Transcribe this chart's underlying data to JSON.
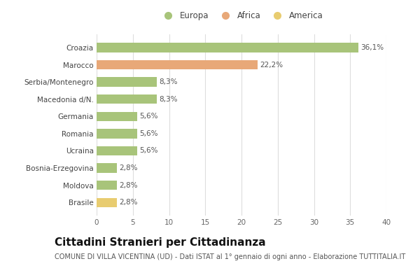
{
  "categories": [
    "Brasile",
    "Moldova",
    "Bosnia-Erzegovina",
    "Ucraina",
    "Romania",
    "Germania",
    "Macedonia d/N.",
    "Serbia/Montenegro",
    "Marocco",
    "Croazia"
  ],
  "values": [
    2.8,
    2.8,
    2.8,
    5.6,
    5.6,
    5.6,
    8.3,
    8.3,
    22.2,
    36.1
  ],
  "labels": [
    "2,8%",
    "2,8%",
    "2,8%",
    "5,6%",
    "5,6%",
    "5,6%",
    "8,3%",
    "8,3%",
    "22,2%",
    "36,1%"
  ],
  "colors": [
    "#e8cc70",
    "#a8c47a",
    "#a8c47a",
    "#a8c47a",
    "#a8c47a",
    "#a8c47a",
    "#a8c47a",
    "#a8c47a",
    "#e8a878",
    "#a8c47a"
  ],
  "legend": [
    {
      "label": "Europa",
      "color": "#a8c47a"
    },
    {
      "label": "Africa",
      "color": "#e8a878"
    },
    {
      "label": "America",
      "color": "#e8cc70"
    }
  ],
  "xlim": [
    0,
    40
  ],
  "xticks": [
    0,
    5,
    10,
    15,
    20,
    25,
    30,
    35,
    40
  ],
  "title": "Cittadini Stranieri per Cittadinanza",
  "subtitle": "COMUNE DI VILLA VICENTINA (UD) - Dati ISTAT al 1° gennaio di ogni anno - Elaborazione TUTTITALIA.IT",
  "bg_color": "#ffffff",
  "grid_color": "#dddddd",
  "bar_height": 0.55,
  "title_fontsize": 11,
  "subtitle_fontsize": 7,
  "label_fontsize": 7.5,
  "tick_fontsize": 7.5,
  "legend_fontsize": 8.5
}
